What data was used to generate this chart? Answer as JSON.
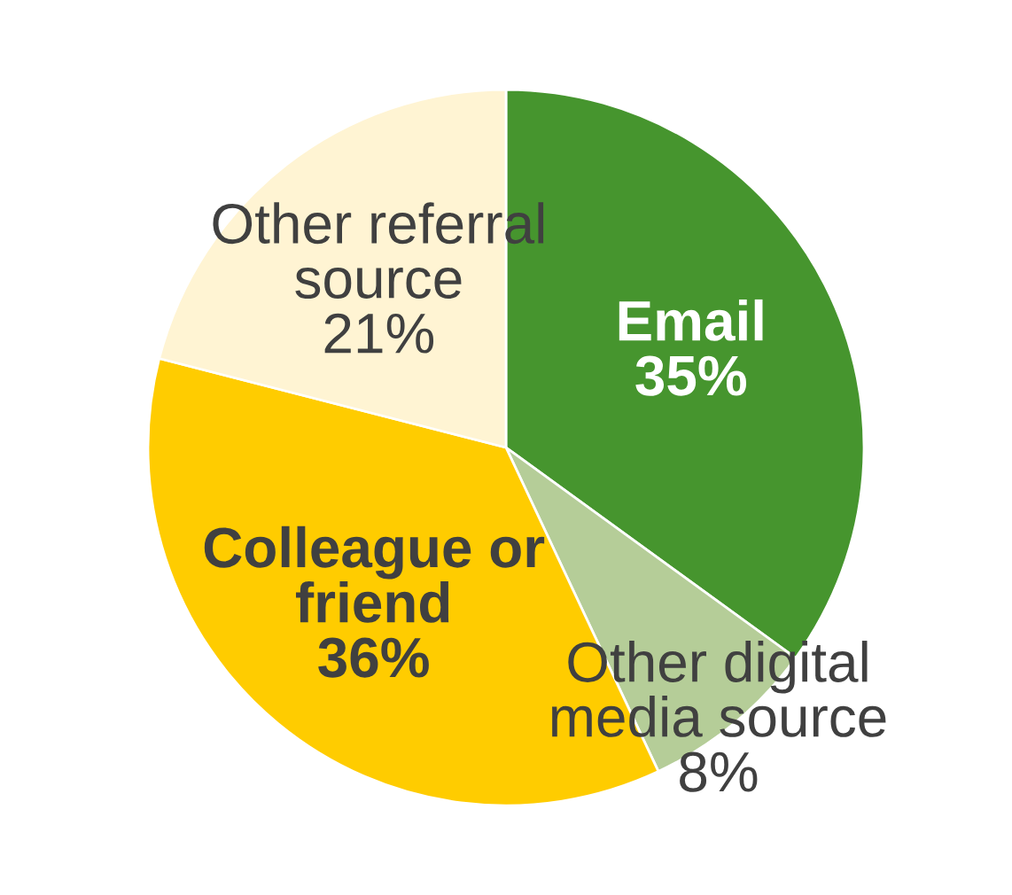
{
  "chart_data": {
    "type": "pie",
    "categories": [
      "Email",
      "Other digital media source",
      "Colleague or friend",
      "Other referral source"
    ],
    "values": [
      35,
      8,
      36,
      21
    ],
    "colors": [
      "#46952e",
      "#b5cd98",
      "#ffcc00",
      "#fff4d3"
    ],
    "value_labels": [
      "35%",
      "8%",
      "36%",
      "21%"
    ]
  }
}
